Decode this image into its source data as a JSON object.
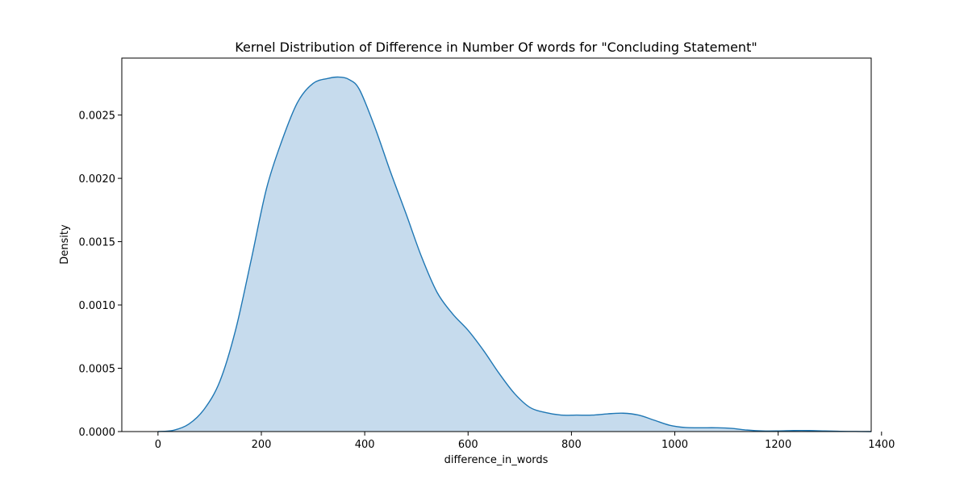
{
  "chart_data": {
    "type": "area",
    "title": "Kernel Distribution of Difference in Number Of words for \"Concluding Statement\"",
    "xlabel": "difference_in_words",
    "ylabel": "Density",
    "xlim": [
      -70,
      1380
    ],
    "ylim": [
      0,
      0.00295
    ],
    "xticks": [
      0,
      200,
      400,
      600,
      800,
      1000,
      1200,
      1400
    ],
    "xtick_labels": [
      "0",
      "200",
      "400",
      "600",
      "800",
      "1000",
      "1200",
      "1400"
    ],
    "yticks": [
      0,
      0.0005,
      0.001,
      0.0015,
      0.002,
      0.0025
    ],
    "ytick_labels": [
      "0.0000",
      "0.0005",
      "0.0010",
      "0.0015",
      "0.0020",
      "0.0025"
    ],
    "grid": false,
    "series": [
      {
        "color": "#1f77b4",
        "fill_color": "#c6dbed",
        "x": [
          0,
          30,
          60,
          90,
          120,
          150,
          180,
          210,
          240,
          270,
          300,
          330,
          350,
          370,
          390,
          420,
          450,
          480,
          510,
          540,
          570,
          600,
          630,
          660,
          690,
          720,
          750,
          780,
          810,
          840,
          870,
          900,
          930,
          960,
          990,
          1020,
          1050,
          1080,
          1110,
          1140,
          1170,
          1200,
          1230,
          1260,
          1290,
          1320,
          1350,
          1380
        ],
        "y": [
          0.0,
          1e-05,
          6e-05,
          0.00018,
          0.0004,
          0.0008,
          0.00135,
          0.00192,
          0.0023,
          0.0026,
          0.00275,
          0.00279,
          0.0028,
          0.00278,
          0.0027,
          0.0024,
          0.00205,
          0.00172,
          0.00138,
          0.0011,
          0.00093,
          0.0008,
          0.00064,
          0.00046,
          0.0003,
          0.00019,
          0.00015,
          0.00013,
          0.00013,
          0.00013,
          0.00014,
          0.000145,
          0.00013,
          9e-05,
          5e-05,
          3.2e-05,
          3e-05,
          3e-05,
          2.5e-05,
          1.2e-05,
          5e-06,
          5e-06,
          8e-06,
          8e-06,
          5e-06,
          2e-06,
          1e-06,
          0.0
        ]
      }
    ]
  }
}
